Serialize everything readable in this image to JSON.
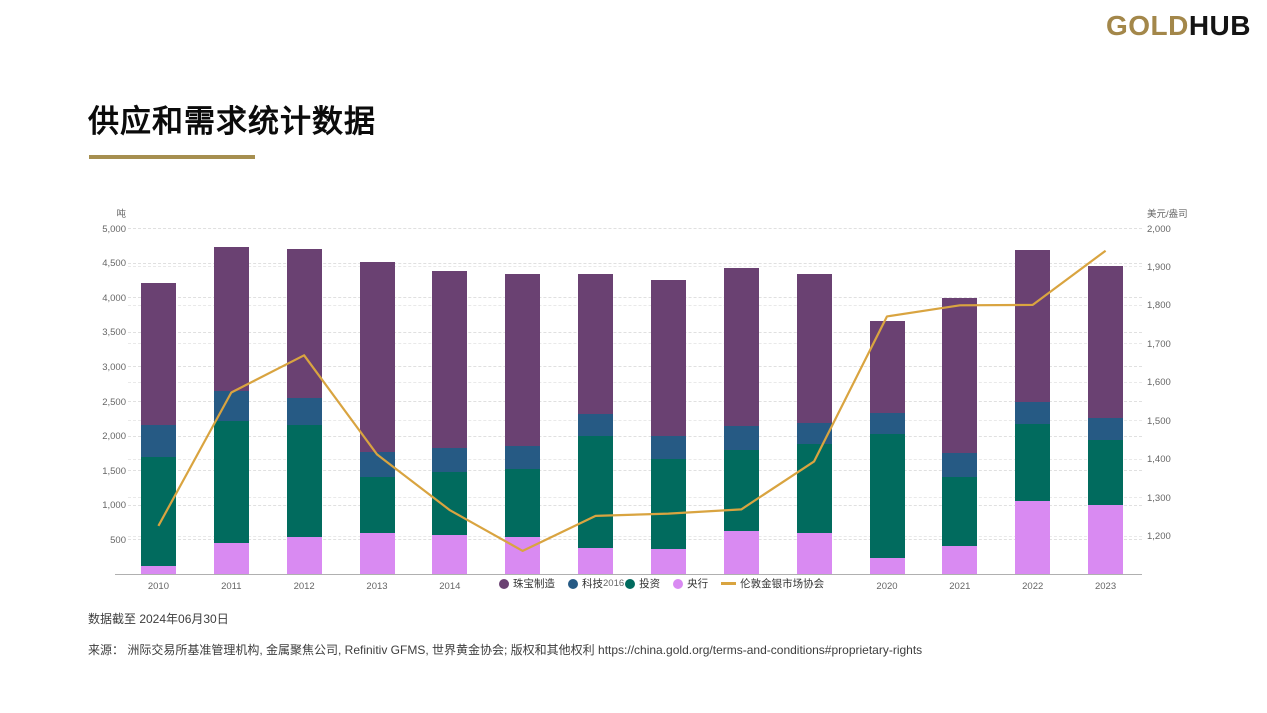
{
  "logo": {
    "gold": "GOLD",
    "hub": "HUB"
  },
  "header": {
    "title": "供应和需求统计数据"
  },
  "footer": {
    "footnote": "数据截至 2024年06月30日",
    "source": "来源：  洲际交易所基准管理机构, 金属聚焦公司, Refinitiv GFMS, 世界黄金协会; 版权和其他权利 https://china.gold.org/terms-and-conditions#proprietary-rights"
  },
  "colors": {
    "logo_gold": "#a3874a",
    "title_underline": "#a68f50",
    "jewellery": "#6a4172",
    "technology": "#265a84",
    "investment": "#016b5e",
    "central_banks": "#d98af2",
    "price_line": "#d9a440",
    "grid": "#e0e0e0",
    "axis_text": "#666666"
  },
  "chart_data": {
    "type": "bar",
    "subtype": "stacked-bars-with-line-overlay",
    "categories": [
      "2010",
      "2011",
      "2012",
      "2013",
      "2014",
      "2015",
      "2016",
      "2017",
      "2018",
      "2019",
      "2020",
      "2021",
      "2022",
      "2023"
    ],
    "series": [
      {
        "name": "珠宝制造",
        "type": "bar",
        "color": "#6a4172",
        "values": [
          2050,
          2090,
          2150,
          2745,
          2560,
          2480,
          2030,
          2260,
          2290,
          2155,
          1330,
          2230,
          2200,
          2190
        ]
      },
      {
        "name": "科技",
        "type": "bar",
        "color": "#265a84",
        "values": [
          460,
          435,
          395,
          365,
          355,
          340,
          310,
          335,
          345,
          305,
          300,
          350,
          320,
          315
        ]
      },
      {
        "name": "投资",
        "type": "bar",
        "color": "#016b5e",
        "values": [
          1570,
          1755,
          1615,
          805,
          905,
          975,
          1630,
          1300,
          1165,
          1285,
          1785,
          995,
          1110,
          940
        ]
      },
      {
        "name": "央行",
        "type": "bar",
        "color": "#d98af2",
        "values": [
          120,
          450,
          540,
          590,
          565,
          540,
          370,
          355,
          625,
          590,
          235,
          410,
          1055,
          1000
        ]
      },
      {
        "name": "伦敦金银市场协会",
        "type": "line",
        "color": "#d9a440",
        "axis": "right",
        "values": [
          1225,
          1572,
          1669,
          1411,
          1266,
          1160,
          1251,
          1257,
          1268,
          1393,
          1770,
          1799,
          1800,
          1941
        ]
      }
    ],
    "left_axis": {
      "label": "吨",
      "min": 0,
      "max": 5000,
      "tick_step": 500,
      "tick_labels": [
        "500",
        "1,000",
        "1,500",
        "2,000",
        "2,500",
        "3,000",
        "3,500",
        "4,000",
        "4,500",
        "5,000"
      ]
    },
    "right_axis": {
      "label": "美元/盎司",
      "min": 1100,
      "max": 2000,
      "tick_step": 100,
      "tick_labels": [
        "1,200",
        "1,300",
        "1,400",
        "1,500",
        "1,600",
        "1,700",
        "1,800",
        "1,900",
        "2,000"
      ]
    },
    "legend_position": "bottom-center-overlapping-x-axis",
    "axis_overlap_label": "2016",
    "grid": "dashed-horizontal",
    "stacking_order_bottom_to_top": [
      "央行",
      "投资",
      "科技",
      "珠宝制造"
    ]
  }
}
